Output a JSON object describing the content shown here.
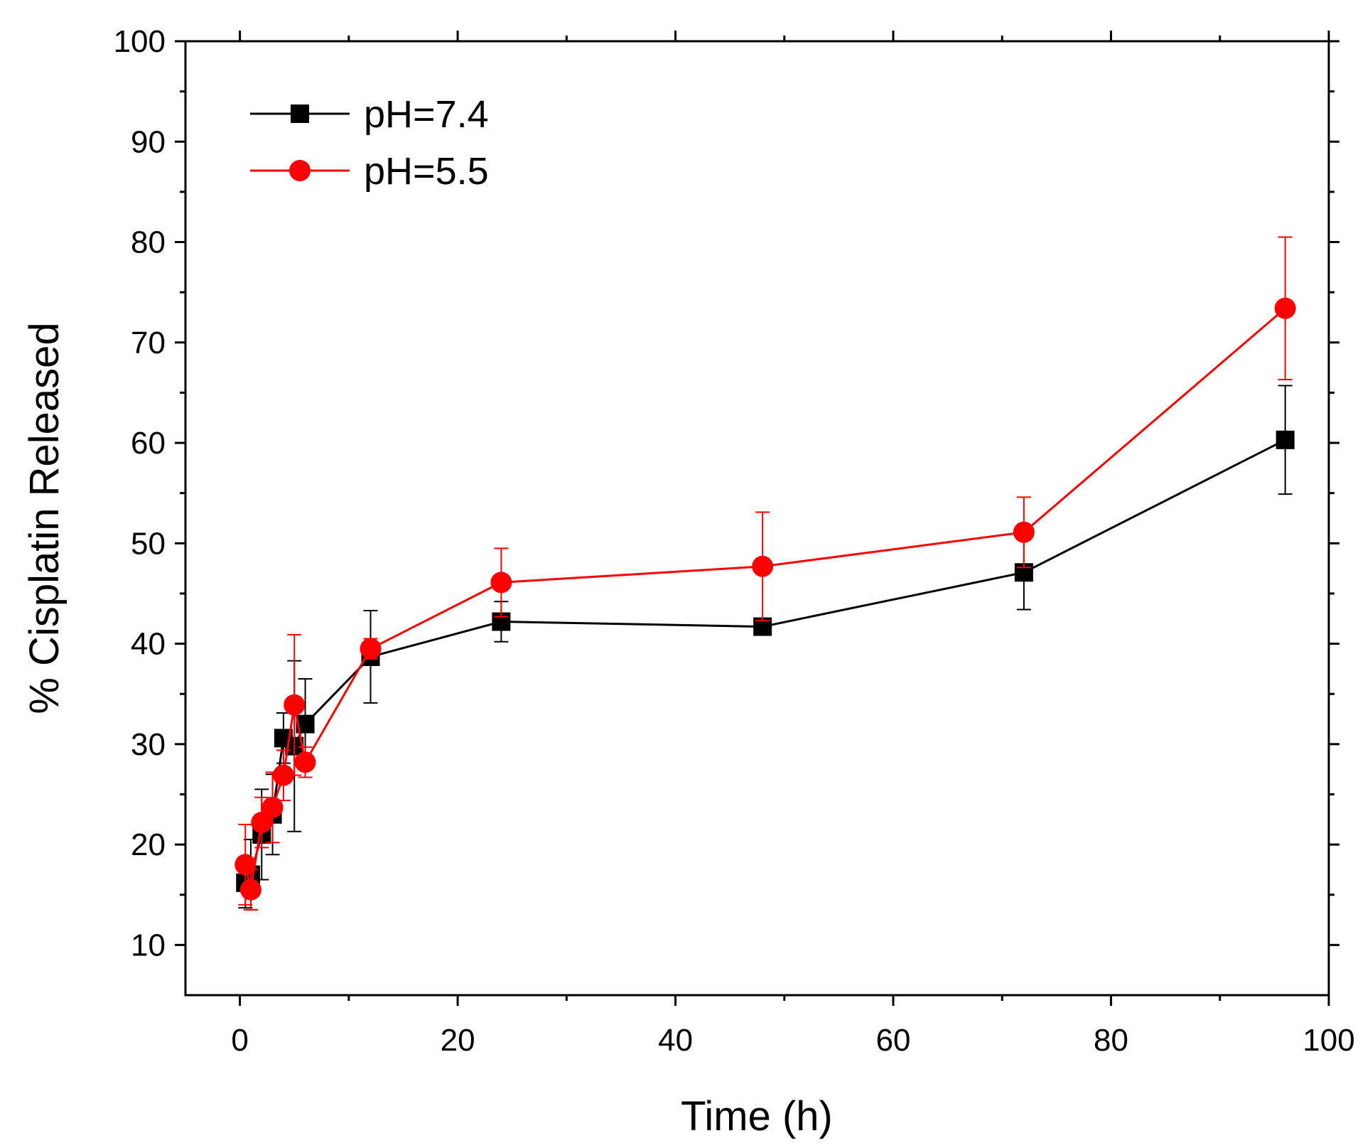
{
  "chart_data": {
    "type": "line",
    "title": "",
    "xlabel": "Time (h)",
    "ylabel": "% Cisplatin Released",
    "xlim": [
      -5,
      100
    ],
    "ylim": [
      5,
      100
    ],
    "xticks": [
      0,
      20,
      40,
      60,
      80,
      100
    ],
    "xtick_labels": [
      "0",
      "20",
      "40",
      "60",
      "80",
      "100"
    ],
    "yticks": [
      10,
      20,
      30,
      40,
      50,
      60,
      70,
      80,
      90,
      100
    ],
    "ytick_labels": [
      "10",
      "20",
      "30",
      "40",
      "50",
      "60",
      "70",
      "80",
      "90",
      "100"
    ],
    "legend_position": "top-left",
    "series": [
      {
        "name": "pH=7.4",
        "color": "#000000",
        "marker": "square",
        "x": [
          0.5,
          1,
          2,
          3,
          4,
          5,
          6,
          12,
          24,
          48,
          72,
          96
        ],
        "y": [
          16.2,
          17.0,
          21.0,
          23.0,
          30.6,
          29.8,
          32.0,
          38.7,
          42.2,
          41.7,
          47.1,
          60.3
        ],
        "err": [
          2.5,
          3.5,
          4.5,
          4.0,
          2.5,
          8.5,
          4.5,
          4.6,
          2.0,
          0.6,
          3.7,
          5.4
        ]
      },
      {
        "name": "pH=5.5",
        "color": "#ff0000",
        "marker": "circle",
        "x": [
          0.5,
          1,
          2,
          3,
          4,
          5,
          6,
          12,
          24,
          48,
          72,
          96
        ],
        "y": [
          18.0,
          15.5,
          22.2,
          23.7,
          26.9,
          33.9,
          28.2,
          39.5,
          46.1,
          47.7,
          51.1,
          73.4
        ],
        "err": [
          4.0,
          2.0,
          2.5,
          3.5,
          2.5,
          7.0,
          1.5,
          1.0,
          3.4,
          5.4,
          3.5,
          7.1
        ]
      }
    ]
  }
}
